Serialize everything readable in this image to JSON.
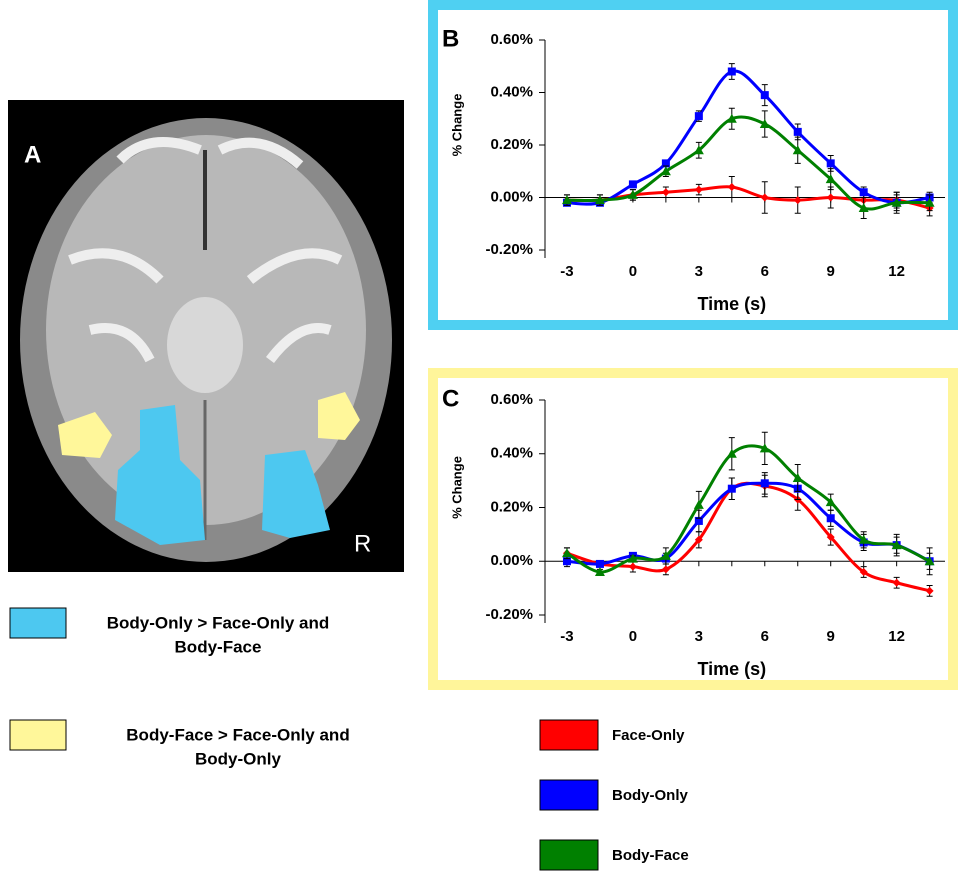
{
  "panel_a": {
    "label": "A",
    "orientation": "R",
    "legend": [
      {
        "label": [
          "Body-Only > Face-Only and",
          "Body-Face"
        ],
        "color": "#4dc8f0"
      },
      {
        "label": [
          "Body-Face > Face-Only and",
          "Body-Only"
        ],
        "color": "#fff79a"
      }
    ]
  },
  "chart_data": [
    {
      "type": "line",
      "panel_label": "B",
      "y_label": "% Change",
      "x_label": "Time (s)",
      "frame_color": "#4fd0f2",
      "x": [
        -3,
        -1.5,
        0,
        1.5,
        3,
        4.5,
        6,
        7.5,
        9,
        10.5,
        12,
        13.5
      ],
      "xlim": [
        -4,
        14.2
      ],
      "xticks": [
        -3,
        0,
        3,
        6,
        9,
        12
      ],
      "ylim": [
        -0.2,
        0.6
      ],
      "yticks": [
        {
          "value": -0.2,
          "label": "-0.20%"
        },
        {
          "value": 0,
          "label": "0.00%"
        },
        {
          "value": 0.2,
          "label": "0.20%"
        },
        {
          "value": 0.4,
          "label": "0.40%"
        },
        {
          "value": 0.6,
          "label": "0.60%"
        }
      ],
      "series": [
        {
          "name": "Face-Only",
          "color": "#ff0000",
          "marker": "diamond",
          "values": [
            -0.01,
            -0.01,
            0.01,
            0.02,
            0.03,
            0.04,
            0.0,
            -0.01,
            0.0,
            -0.01,
            -0.01,
            -0.04
          ],
          "errors": [
            0.02,
            0.02,
            0.02,
            0.02,
            0.02,
            0.04,
            0.06,
            0.05,
            0.04,
            0.03,
            0.03,
            0.03
          ]
        },
        {
          "name": "Body-Only",
          "color": "#0000ff",
          "marker": "square",
          "values": [
            -0.02,
            -0.02,
            0.05,
            0.13,
            0.31,
            0.48,
            0.39,
            0.25,
            0.13,
            0.02,
            -0.02,
            0.0
          ],
          "errors": [
            0.01,
            0.01,
            0.01,
            0.01,
            0.02,
            0.03,
            0.04,
            0.03,
            0.03,
            0.02,
            0.03,
            0.02
          ]
        },
        {
          "name": "Body-Face",
          "color": "#008000",
          "marker": "triangle",
          "values": [
            -0.01,
            -0.01,
            0.01,
            0.1,
            0.18,
            0.3,
            0.28,
            0.18,
            0.07,
            -0.04,
            -0.02,
            -0.02
          ],
          "errors": [
            0.02,
            0.02,
            0.02,
            0.02,
            0.03,
            0.04,
            0.05,
            0.05,
            0.04,
            0.04,
            0.04,
            0.03
          ]
        }
      ]
    },
    {
      "type": "line",
      "panel_label": "C",
      "y_label": "% Change",
      "x_label": "Time (s)",
      "frame_color": "#fff59a",
      "x": [
        -3,
        -1.5,
        0,
        1.5,
        3,
        4.5,
        6,
        7.5,
        9,
        10.5,
        12,
        13.5
      ],
      "xlim": [
        -4,
        14.2
      ],
      "xticks": [
        -3,
        0,
        3,
        6,
        9,
        12
      ],
      "ylim": [
        -0.2,
        0.6
      ],
      "yticks": [
        {
          "value": -0.2,
          "label": "-0.20%"
        },
        {
          "value": 0,
          "label": "0.00%"
        },
        {
          "value": 0.2,
          "label": "0.20%"
        },
        {
          "value": 0.4,
          "label": "0.40%"
        },
        {
          "value": 0.6,
          "label": "0.60%"
        }
      ],
      "series": [
        {
          "color": "#ff0000",
          "marker": "diamond",
          "values": [
            0.03,
            -0.01,
            -0.02,
            -0.03,
            0.08,
            0.27,
            0.28,
            0.23,
            0.09,
            -0.04,
            -0.08,
            -0.11
          ],
          "errors": [
            0.02,
            0.01,
            0.02,
            0.02,
            0.03,
            0.04,
            0.04,
            0.04,
            0.03,
            0.02,
            0.02,
            0.02
          ]
        },
        {
          "color": "#0000ff",
          "marker": "square",
          "values": [
            0.0,
            -0.01,
            0.02,
            0.01,
            0.15,
            0.27,
            0.29,
            0.27,
            0.16,
            0.07,
            0.06,
            0.0
          ],
          "errors": [
            0.02,
            0.01,
            0.01,
            0.02,
            0.04,
            0.04,
            0.04,
            0.04,
            0.03,
            0.03,
            0.03,
            0.03
          ]
        },
        {
          "color": "#008000",
          "marker": "triangle",
          "values": [
            0.03,
            -0.04,
            0.01,
            0.02,
            0.21,
            0.4,
            0.42,
            0.31,
            0.22,
            0.08,
            0.06,
            0.0
          ],
          "errors": [
            0.02,
            0.01,
            0.01,
            0.03,
            0.05,
            0.06,
            0.06,
            0.05,
            0.03,
            0.03,
            0.04,
            0.05
          ]
        }
      ]
    }
  ]
}
